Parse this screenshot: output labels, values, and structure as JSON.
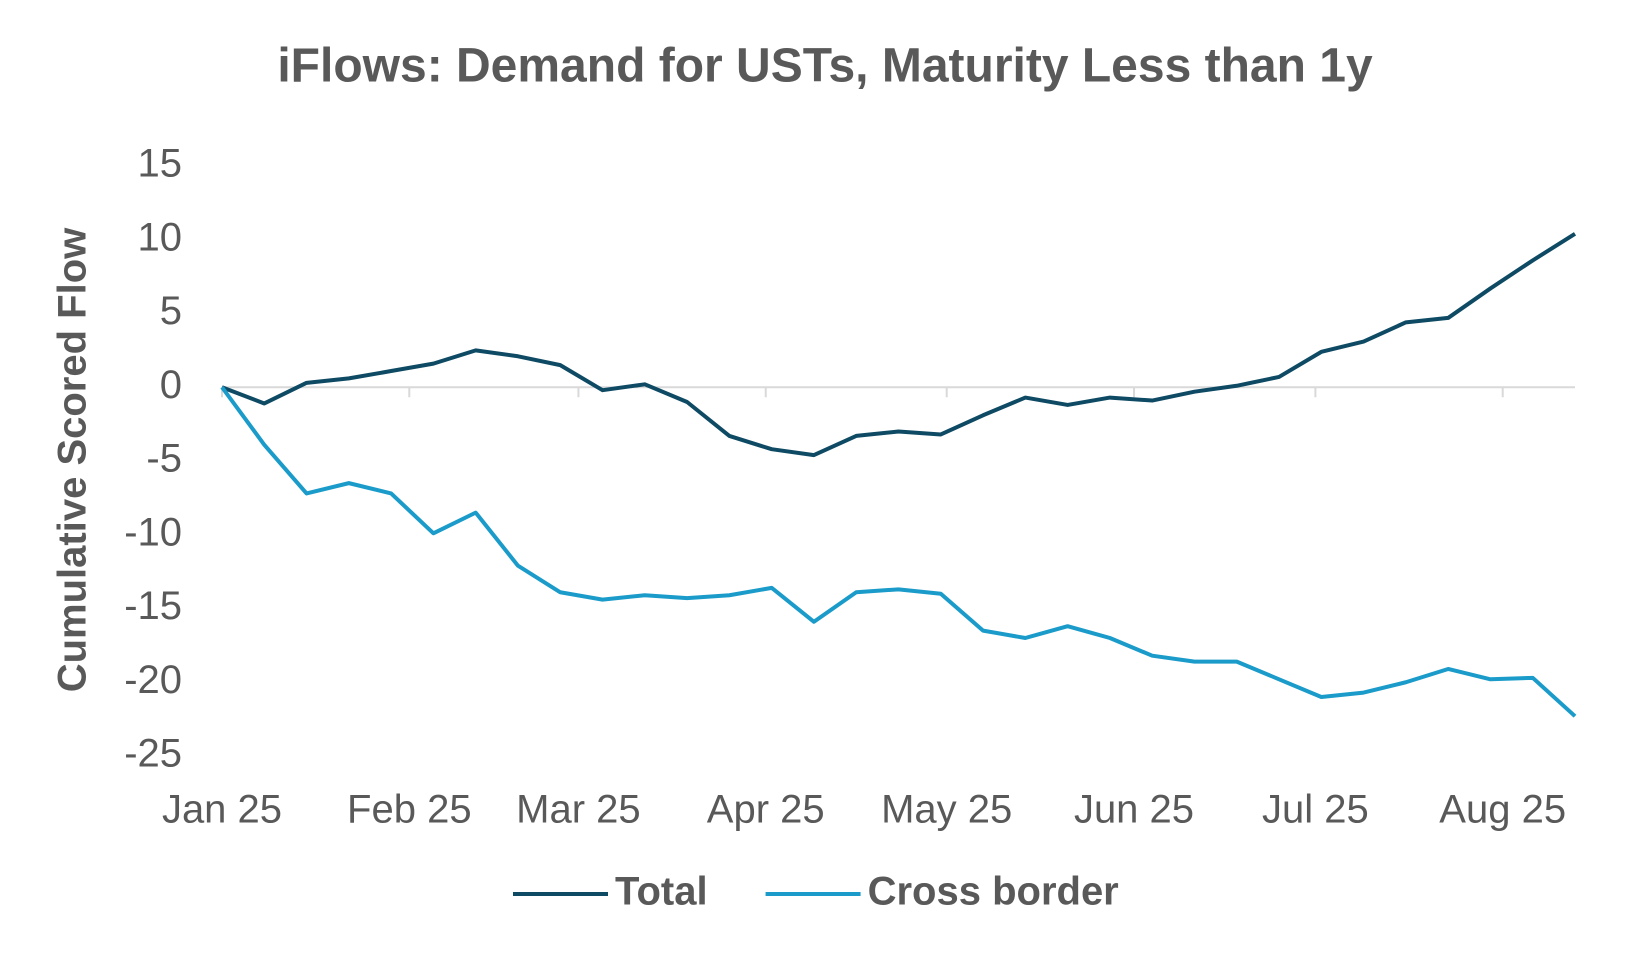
{
  "chart_data": {
    "type": "line",
    "title": "iFlows: Demand for USTs, Maturity Less than 1y",
    "y_label": "Cumulative Scored Flow",
    "xlim": [
      0,
      32
    ],
    "xticks": [
      {
        "value": 0,
        "label": "Jan 25"
      },
      {
        "value": 4.43,
        "label": "Feb 25"
      },
      {
        "value": 8.43,
        "label": "Mar 25"
      },
      {
        "value": 12.86,
        "label": "Apr 25"
      },
      {
        "value": 17.14,
        "label": "May 25"
      },
      {
        "value": 21.57,
        "label": "Jun 25"
      },
      {
        "value": 25.86,
        "label": "Jul 25"
      },
      {
        "value": 30.29,
        "label": "Aug 25"
      }
    ],
    "ylim": [
      -25,
      15
    ],
    "yticks": [
      15,
      10,
      5,
      0,
      -5,
      -10,
      -15,
      -20,
      -25
    ],
    "grid": false,
    "legend": "bottom",
    "series": [
      {
        "name": "Total",
        "color": "#0e4a64",
        "values": [
          0,
          -1.1,
          0.3,
          0.6,
          1.1,
          1.6,
          2.5,
          2.1,
          1.5,
          -0.2,
          0.2,
          -1.0,
          -3.3,
          -4.2,
          -4.6,
          -3.3,
          -3.0,
          -3.2,
          -1.9,
          -0.7,
          -1.2,
          -0.7,
          -0.9,
          -0.3,
          0.1,
          0.7,
          2.4,
          3.1,
          4.4,
          4.7,
          6.7,
          8.6,
          10.4
        ]
      },
      {
        "name": "Cross border",
        "color": "#1a9bc9",
        "values": [
          0,
          -3.9,
          -7.2,
          -6.5,
          -7.2,
          -9.9,
          -8.5,
          -12.1,
          -13.9,
          -14.4,
          -14.1,
          -14.3,
          -14.1,
          -13.6,
          -15.9,
          -13.9,
          -13.7,
          -14.0,
          -16.5,
          -17.0,
          -16.2,
          -17.0,
          -18.2,
          -18.6,
          -18.6,
          -19.8,
          -21.0,
          -20.7,
          -20.0,
          -19.1,
          -19.8,
          -19.7,
          -22.3
        ]
      }
    ]
  }
}
